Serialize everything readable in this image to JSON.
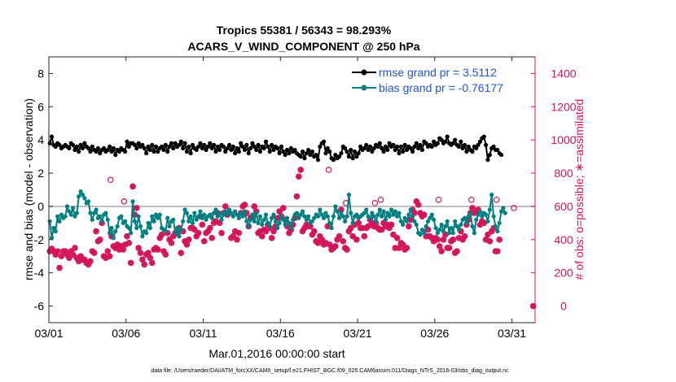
{
  "chart_data": {
    "type": "line",
    "title_line1": "Tropics 55381 / 56343 = 98.293%",
    "title_line2": "ACARS_V_WIND_COMPONENT @ 250 hPa",
    "xlabel": "Mar.01,2016 00:00:00 start",
    "ylabel_left": "rmse and bias (model - observation)",
    "ylabel_right": "# of obs: o=possible; ∗=assimilated",
    "footnote": "data file: /Users/raeder/DAI/ATM_forcXX/CAM6_setup/f.e21.FHIST_BGC.f09_025.CAM6assim.011/Diags_NTrS_2016-03/obs_diag_output.nc",
    "x_ticks": [
      "03/01",
      "03/06",
      "03/11",
      "03/16",
      "03/21",
      "03/26",
      "03/31"
    ],
    "x_tick_days": [
      0,
      5,
      10,
      15,
      20,
      25,
      30
    ],
    "xlim_days": [
      0,
      31.5
    ],
    "y_left_ticks": [
      "-6",
      "-4",
      "-2",
      "0",
      "2",
      "4",
      "6",
      "8"
    ],
    "y_left_tick_values": [
      -6,
      -4,
      -2,
      0,
      2,
      4,
      6,
      8
    ],
    "ylim_left": [
      -7,
      9
    ],
    "y_right_ticks": [
      "0",
      "200",
      "400",
      "600",
      "800",
      "1000",
      "1200",
      "1400"
    ],
    "y_right_tick_values": [
      0,
      200,
      400,
      600,
      800,
      1000,
      1200,
      1400
    ],
    "ylim_right": [
      -100,
      1500
    ],
    "zero_line": 0,
    "legend": [
      {
        "label": "rmse grand pr = 3.5112",
        "color": "#000000"
      },
      {
        "label": "bias grand pr = -0.76177",
        "color": "#008080"
      }
    ],
    "colors": {
      "rmse": "#000000",
      "bias": "#008080",
      "obs": "#d4145a",
      "zero": "#c0c0c0",
      "right_axis": "#d4145a"
    },
    "step_hours": 3,
    "rmse": [
      3.8,
      4.2,
      3.7,
      3.6,
      3.8,
      3.7,
      3.5,
      3.6,
      3.7,
      3.6,
      3.5,
      3.8,
      3.7,
      3.4,
      3.6,
      3.3,
      3.7,
      3.5,
      3.8,
      3.6,
      3.5,
      3.3,
      3.6,
      3.4,
      3.3,
      3.5,
      3.2,
      3.4,
      3.5,
      3.3,
      3.4,
      3.6,
      3.3,
      3.5,
      3.1,
      3.4,
      3.3,
      3.5,
      3.4,
      3.3,
      3.9,
      3.6,
      3.8,
      3.8,
      3.7,
      3.5,
      3.8,
      3.6,
      3.7,
      3.5,
      3.2,
      3.6,
      3.4,
      3.7,
      3.3,
      3.6,
      3.3,
      3.5,
      3.6,
      3.4,
      3.7,
      3.3,
      3.6,
      3.8,
      3.5,
      3.8,
      3.6,
      3.7,
      3.9,
      3.5,
      3.8,
      3.3,
      3.6,
      3.2,
      3.7,
      3.5,
      3.4,
      3.6,
      3.8,
      3.5,
      3.7,
      3.4,
      3.6,
      3.8,
      3.5,
      3.7,
      3.3,
      3.6,
      3.4,
      3.7,
      3.6,
      3.3,
      3.5,
      3.7,
      3.4,
      3.6,
      3.2,
      3.5,
      3.3,
      3.8,
      3.6,
      3.4,
      3.7,
      3.2,
      3.5,
      3.8,
      3.6,
      3.4,
      3.7,
      3.3,
      3.6,
      3.5,
      3.9,
      3.6,
      3.3,
      3.7,
      3.4,
      3.6,
      3.5,
      3.2,
      3.6,
      3.3,
      3.1,
      3.4,
      3.2,
      3.5,
      3.3,
      3.4,
      3.2,
      3.1,
      3.0,
      3.3,
      2.9,
      3.2,
      3.4,
      3.1,
      3.3,
      3.0,
      3.1,
      2.8,
      3.6,
      3.8,
      3.9,
      3.2,
      3.5,
      3.3,
      2.9,
      2.8,
      3.1,
      2.9,
      3.0,
      3.2,
      3.6,
      3.5,
      3.3,
      3.0,
      3.4,
      2.9,
      3.3,
      3.0,
      3.2,
      3.6,
      3.4,
      3.5,
      3.7,
      3.4,
      3.6,
      3.3,
      3.5,
      3.7,
      3.6,
      3.8,
      3.5,
      3.3,
      3.6,
      3.4,
      3.8,
      3.6,
      3.7,
      3.4,
      3.6,
      3.2,
      3.6,
      3.3,
      3.7,
      3.4,
      3.6,
      3.5,
      3.3,
      3.6,
      3.8,
      3.5,
      3.7,
      3.4,
      3.9,
      3.8,
      3.6,
      3.7,
      3.6,
      3.9,
      3.7,
      3.8,
      4.1,
      4.0,
      3.8,
      3.9,
      4.2,
      3.8,
      3.7,
      3.8,
      4.0,
      3.7,
      3.6,
      3.9,
      3.5,
      3.7,
      3.3,
      3.6,
      3.4,
      3.3,
      3.6,
      3.5,
      3.7,
      3.9,
      4.1,
      4.2,
      3.7,
      2.8,
      3.1,
      3.5,
      3.6,
      3.4,
      3.4,
      3.2,
      3.1
    ],
    "bias": [
      -0.9,
      -1.9,
      -1.3,
      -1.5,
      -0.6,
      -0.9,
      -0.5,
      -0.7,
      -0.6,
      0.0,
      -0.3,
      -0.5,
      -0.1,
      -0.6,
      -0.4,
      0.6,
      0.9,
      0.7,
      0.5,
      0.2,
      0.3,
      -0.4,
      -0.8,
      -0.4,
      -0.2,
      -0.7,
      -0.6,
      -0.9,
      -0.5,
      -0.4,
      -0.8,
      -1.6,
      -1.3,
      -1.9,
      -1.5,
      -1.2,
      -0.7,
      -0.6,
      -1.0,
      -0.9,
      -1.2,
      -1.3,
      -1.6,
      0.3,
      -0.9,
      -1.3,
      -0.6,
      -1.2,
      -1.8,
      -1.5,
      -1.6,
      -1.0,
      -1.3,
      -0.6,
      -0.9,
      -0.5,
      -0.7,
      -0.5,
      -1.3,
      -1.4,
      -1.5,
      -0.7,
      -1.2,
      -0.9,
      -0.8,
      -1.6,
      -1.3,
      -1.8,
      -1.4,
      -0.9,
      -0.2,
      -0.4,
      -0.9,
      -0.6,
      -1.0,
      -0.4,
      -0.8,
      -0.6,
      -0.3,
      -0.7,
      -0.5,
      -0.8,
      -0.6,
      -0.5,
      -0.7,
      -0.4,
      -0.2,
      -0.6,
      -0.4,
      -0.8,
      -0.5,
      -0.3,
      -0.5,
      -0.2,
      -0.4,
      -0.6,
      -0.3,
      -0.5,
      -0.7,
      -0.4,
      -0.6,
      -0.3,
      -0.9,
      -1.2,
      -0.8,
      -0.5,
      -0.9,
      -0.4,
      -1.0,
      -0.6,
      -1.1,
      -0.8,
      -0.5,
      -1.0,
      -1.2,
      -0.7,
      -0.5,
      -0.9,
      -1.3,
      -1.0,
      -0.6,
      -0.8,
      -1.1,
      -0.7,
      -1.0,
      -1.3,
      -0.8,
      -0.5,
      -0.4,
      -0.7,
      -0.5,
      -0.3,
      -0.6,
      -0.8,
      -0.6,
      -1.0,
      -0.9,
      -0.7,
      -0.5,
      -0.6,
      -0.2,
      -0.5,
      -0.7,
      -0.4,
      -0.6,
      -1.0,
      -1.3,
      -0.6,
      0.0,
      -0.3,
      -0.7,
      -0.4,
      -0.6,
      -0.9,
      -0.6,
      0.7,
      -0.4,
      -1.0,
      -0.6,
      -0.5,
      -0.7,
      -0.6,
      -0.5,
      -0.4,
      -0.2,
      -0.6,
      -0.7,
      -0.4,
      -0.6,
      -0.9,
      -0.5,
      -0.2,
      -0.6,
      -0.3,
      -0.8,
      -0.4,
      -0.6,
      -0.2,
      -0.5,
      -0.3,
      -0.6,
      -0.4,
      -0.9,
      -1.1,
      -0.7,
      -0.9,
      -0.5,
      -0.2,
      -0.6,
      -0.9,
      -1.1,
      -1.6,
      -1.7,
      -1.4,
      -1.6,
      -1.2,
      -0.9,
      -0.7,
      -0.5,
      -0.8,
      -1.3,
      -1.6,
      -1.4,
      -1.1,
      -1.5,
      -1.2,
      -0.9,
      -1.6,
      -1.3,
      -1.6,
      -0.9,
      -1.2,
      -1.4,
      -1.1,
      -0.8,
      -0.7,
      -1.0,
      -0.6,
      -0.4,
      -1.2,
      -1.6,
      -0.8,
      -0.5,
      -0.3,
      -0.6,
      -0.4,
      -0.5,
      -0.9,
      -0.2,
      0.7,
      -0.6,
      -1.2,
      -1.5,
      -1.0,
      -0.3,
      -0.1,
      -0.4
    ],
    "obs_assimilated": [
      330,
      345,
      330,
      310,
      330,
      230,
      300,
      330,
      330,
      310,
      290,
      330,
      310,
      350,
      290,
      270,
      300,
      280,
      280,
      260,
      250,
      270,
      330,
      320,
      450,
      390,
      400,
      500,
      300,
      290,
      330,
      300,
      420,
      360,
      350,
      370,
      340,
      360,
      340,
      370,
      420,
      380,
      260,
      720,
      550,
      590,
      350,
      320,
      280,
      250,
      310,
      320,
      290,
      260,
      340,
      350,
      340,
      410,
      430,
      330,
      310,
      440,
      400,
      380,
      420,
      440,
      440,
      470,
      320,
      450,
      390,
      370,
      400,
      470,
      470,
      460,
      420,
      440,
      540,
      490,
      390,
      440,
      450,
      470,
      410,
      500,
      510,
      560,
      500,
      440,
      560,
      600,
      550,
      560,
      410,
      420,
      450,
      400,
      440,
      560,
      600,
      610,
      560,
      480,
      530,
      540,
      600,
      570,
      440,
      450,
      420,
      460,
      450,
      490,
      470,
      410,
      450,
      480,
      530,
      570,
      540,
      590,
      520,
      480,
      440,
      460,
      490,
      530,
      660,
      780,
      820,
      450,
      470,
      490,
      480,
      480,
      430,
      450,
      390,
      380,
      420,
      400,
      370,
      380,
      480,
      370,
      340,
      350,
      360,
      400,
      420,
      580,
      390,
      350,
      340,
      450,
      470,
      420,
      490,
      400,
      500,
      470,
      470,
      420,
      470,
      480,
      520,
      500,
      480,
      500,
      470,
      460,
      460,
      500,
      480,
      490,
      470,
      490,
      430,
      350,
      410,
      350,
      380,
      370,
      340,
      350,
      480,
      520,
      580,
      560,
      630,
      610,
      560,
      540,
      550,
      420,
      460,
      420,
      410,
      390,
      410,
      400,
      360,
      330,
      400,
      430,
      350,
      350,
      390,
      400,
      320,
      330,
      410,
      450,
      400,
      420,
      490,
      520,
      560,
      590,
      560,
      570,
      580,
      490,
      510,
      500,
      400,
      430,
      390,
      450,
      470,
      330,
      330,
      400
    ],
    "obs_possible_extra": [
      [
        4.0,
        760
      ],
      [
        4.875,
        630
      ],
      [
        18.125,
        820
      ],
      [
        19.25,
        620
      ],
      [
        21.125,
        620
      ],
      [
        21.5,
        640
      ],
      [
        25.25,
        640
      ],
      [
        27.375,
        640
      ],
      [
        29.0,
        640
      ],
      [
        30.125,
        590
      ]
    ],
    "obs_endpoint": [
      31.375,
      0
    ]
  }
}
